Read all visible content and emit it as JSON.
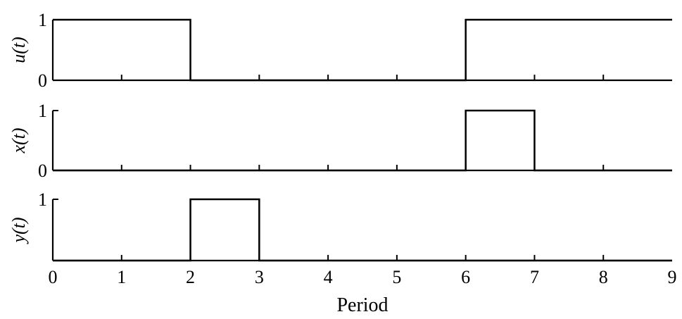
{
  "chart_data": [
    {
      "type": "line",
      "ylabel": "u(t)",
      "ylim": [
        0,
        1
      ],
      "xlim": [
        0,
        9
      ],
      "yticks": [
        "0",
        "1"
      ],
      "series": [
        {
          "x": [
            0,
            2,
            2,
            6,
            6,
            9
          ],
          "y": [
            1,
            1,
            0,
            0,
            1,
            1
          ]
        }
      ]
    },
    {
      "type": "line",
      "ylabel": "x(t)",
      "ylim": [
        0,
        1
      ],
      "xlim": [
        0,
        9
      ],
      "yticks": [
        "0",
        "1"
      ],
      "series": [
        {
          "x": [
            0,
            6,
            6,
            7,
            7,
            9
          ],
          "y": [
            0,
            0,
            1,
            1,
            0,
            0
          ]
        }
      ]
    },
    {
      "type": "line",
      "ylabel": "y(t)",
      "ylim": [
        0,
        1
      ],
      "xlim": [
        0,
        9
      ],
      "yticks": [
        "1"
      ],
      "xticks": [
        "0",
        "1",
        "2",
        "3",
        "4",
        "5",
        "6",
        "7",
        "8",
        "9"
      ],
      "xlabel": "Period",
      "series": [
        {
          "x": [
            0,
            2,
            2,
            3,
            3,
            9
          ],
          "y": [
            0,
            0,
            1,
            1,
            0,
            0
          ]
        }
      ]
    }
  ]
}
